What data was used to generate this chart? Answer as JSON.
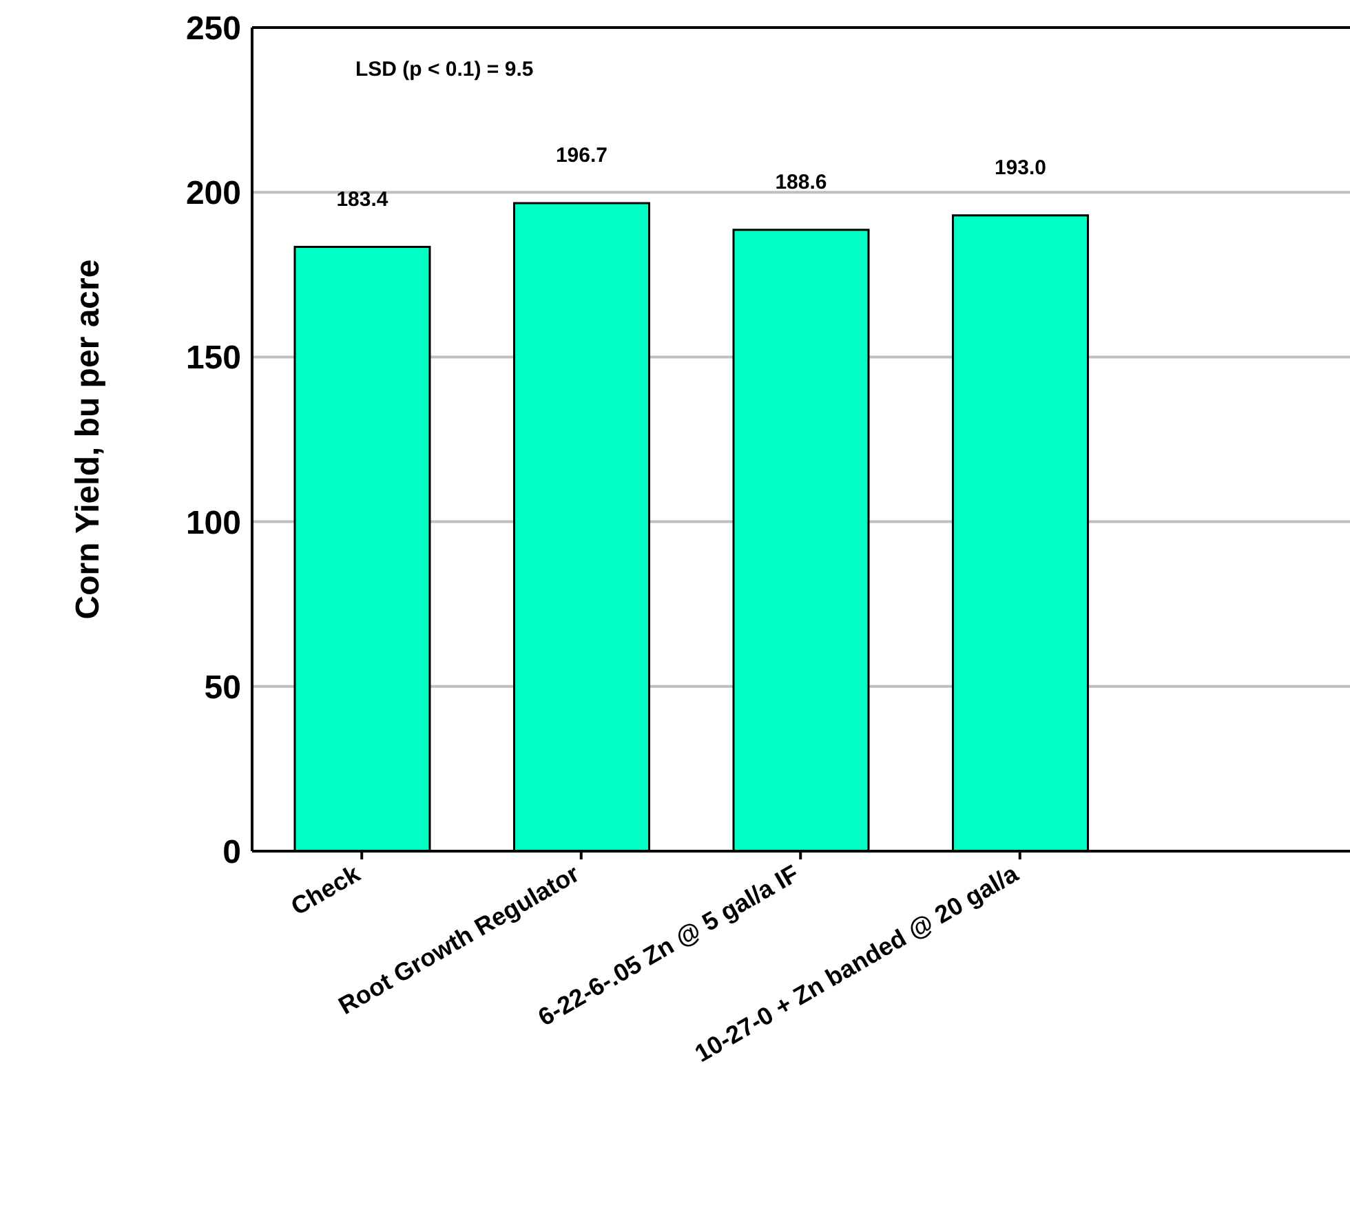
{
  "chart_data": {
    "type": "bar",
    "ylabel": "Corn Yield, bu per acre",
    "categories": [
      "Check",
      "Root Growth Regulator",
      "6-22-6-.05 Zn @ 5 gal/a IF",
      "10-27-0 + Zn banded @ 20 gal/a"
    ],
    "values": [
      183.4,
      196.7,
      188.6,
      193.0
    ],
    "value_labels": [
      "183.4",
      "196.7",
      "188.6",
      "193.0"
    ],
    "color": "#00ffc4",
    "ylim": [
      0,
      250
    ],
    "yticks": [
      0,
      50,
      100,
      150,
      200,
      250
    ],
    "grid": "y",
    "annotations": [
      "LSD (p < 0.1) = 9.5"
    ]
  }
}
